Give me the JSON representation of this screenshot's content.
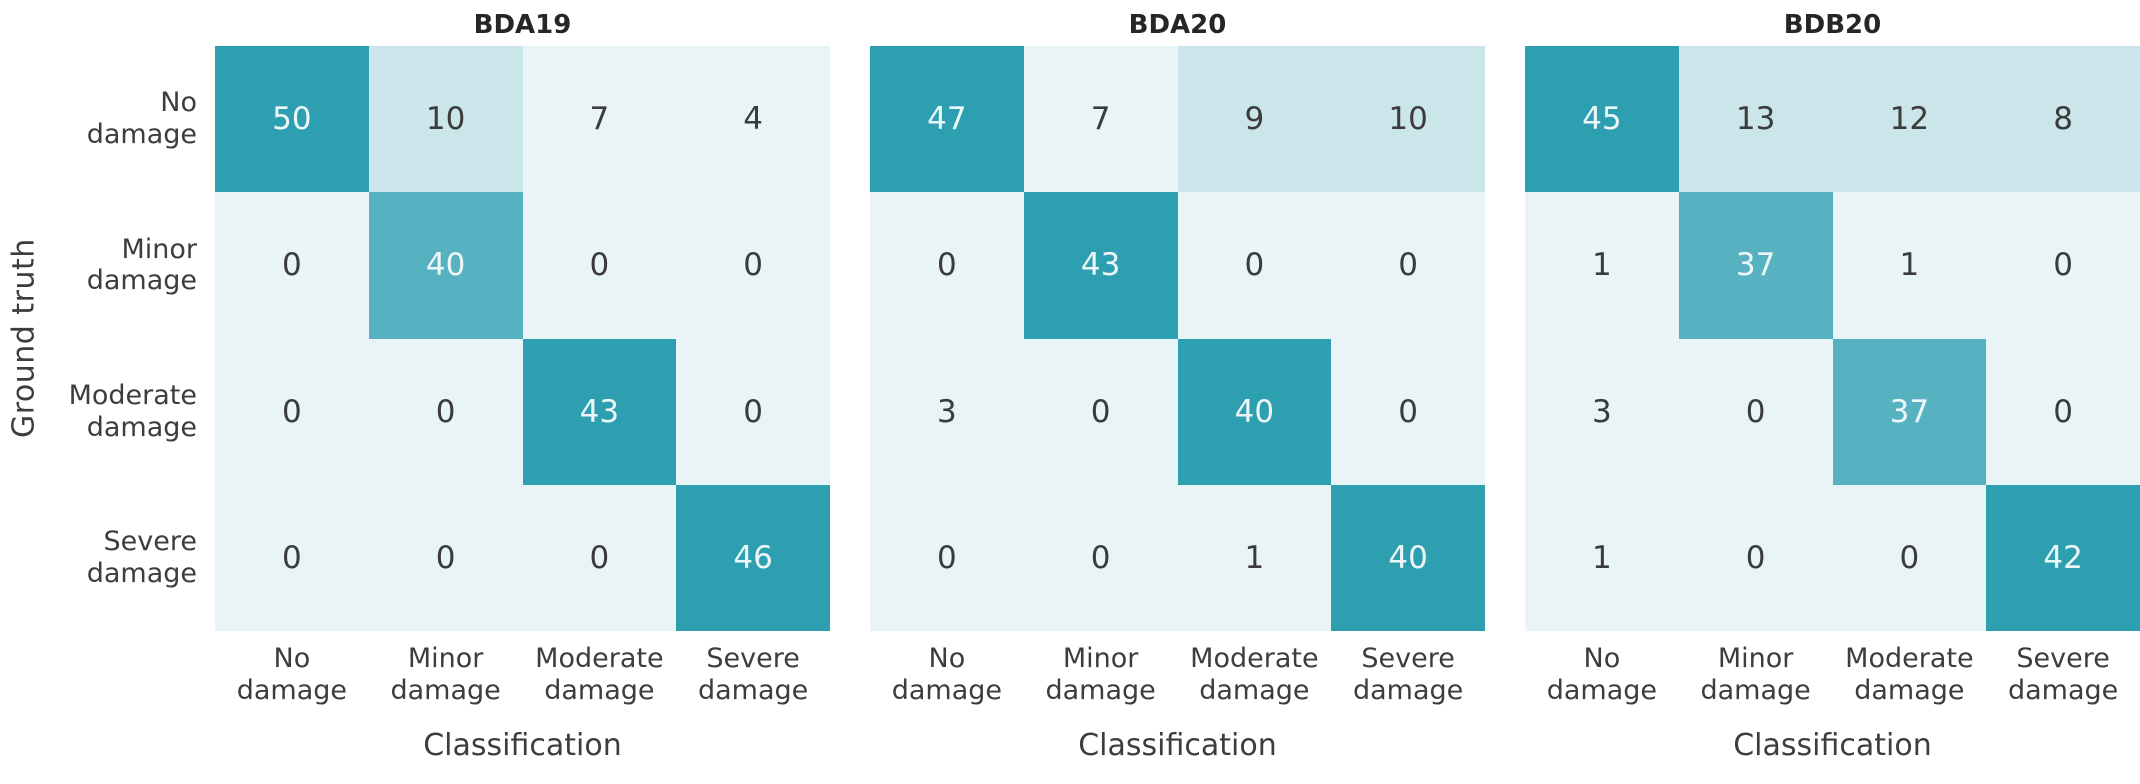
{
  "figure": {
    "background": "#ffffff",
    "shared_ylabel": "Ground truth",
    "shared_xlabel": "Classification"
  },
  "colors": {
    "scale": [
      "#e9f4f6",
      "#cbe6ea",
      "#a7d7e0",
      "#7fc5d0",
      "#56b1c0",
      "#2d9fb1"
    ],
    "annotation_dark": "#3b3b3b",
    "annotation_light": "#eef7f8",
    "title_color": "#262626",
    "tick_color": "#3d3d3d"
  },
  "chart_data": [
    {
      "type": "heatmap",
      "title": "BDA19",
      "xlabel": "Classification",
      "ylabel": "Ground truth",
      "categories": [
        "No damage",
        "Minor damage",
        "Moderate damage",
        "Severe damage"
      ],
      "row_labels": [
        "No damage",
        "Minor damage",
        "Moderate damage",
        "Severe damage"
      ],
      "matrix": [
        [
          50,
          10,
          7,
          4
        ],
        [
          0,
          40,
          0,
          0
        ],
        [
          0,
          0,
          43,
          0
        ],
        [
          0,
          0,
          0,
          46
        ]
      ],
      "colormap": "light-to-teal, 6 discrete bins, normalized to per-matrix max",
      "legend": "none",
      "grid": "off"
    },
    {
      "type": "heatmap",
      "title": "BDA20",
      "xlabel": "Classification",
      "ylabel": "Ground truth",
      "categories": [
        "No damage",
        "Minor damage",
        "Moderate damage",
        "Severe damage"
      ],
      "row_labels": [
        "No damage",
        "Minor damage",
        "Moderate damage",
        "Severe damage"
      ],
      "matrix": [
        [
          47,
          7,
          9,
          10
        ],
        [
          0,
          43,
          0,
          0
        ],
        [
          3,
          0,
          40,
          0
        ],
        [
          0,
          0,
          1,
          40
        ]
      ],
      "colormap": "light-to-teal, 6 discrete bins, normalized to per-matrix max",
      "legend": "none",
      "grid": "off"
    },
    {
      "type": "heatmap",
      "title": "BDB20",
      "xlabel": "Classification",
      "ylabel": "Ground truth",
      "categories": [
        "No damage",
        "Minor damage",
        "Moderate damage",
        "Severe damage"
      ],
      "row_labels": [
        "No damage",
        "Minor damage",
        "Moderate damage",
        "Severe damage"
      ],
      "matrix": [
        [
          45,
          13,
          12,
          8
        ],
        [
          1,
          37,
          1,
          0
        ],
        [
          3,
          0,
          37,
          0
        ],
        [
          1,
          0,
          0,
          42
        ]
      ],
      "colormap": "light-to-teal, 6 discrete bins, normalized to per-matrix max",
      "legend": "none",
      "grid": "off"
    }
  ]
}
